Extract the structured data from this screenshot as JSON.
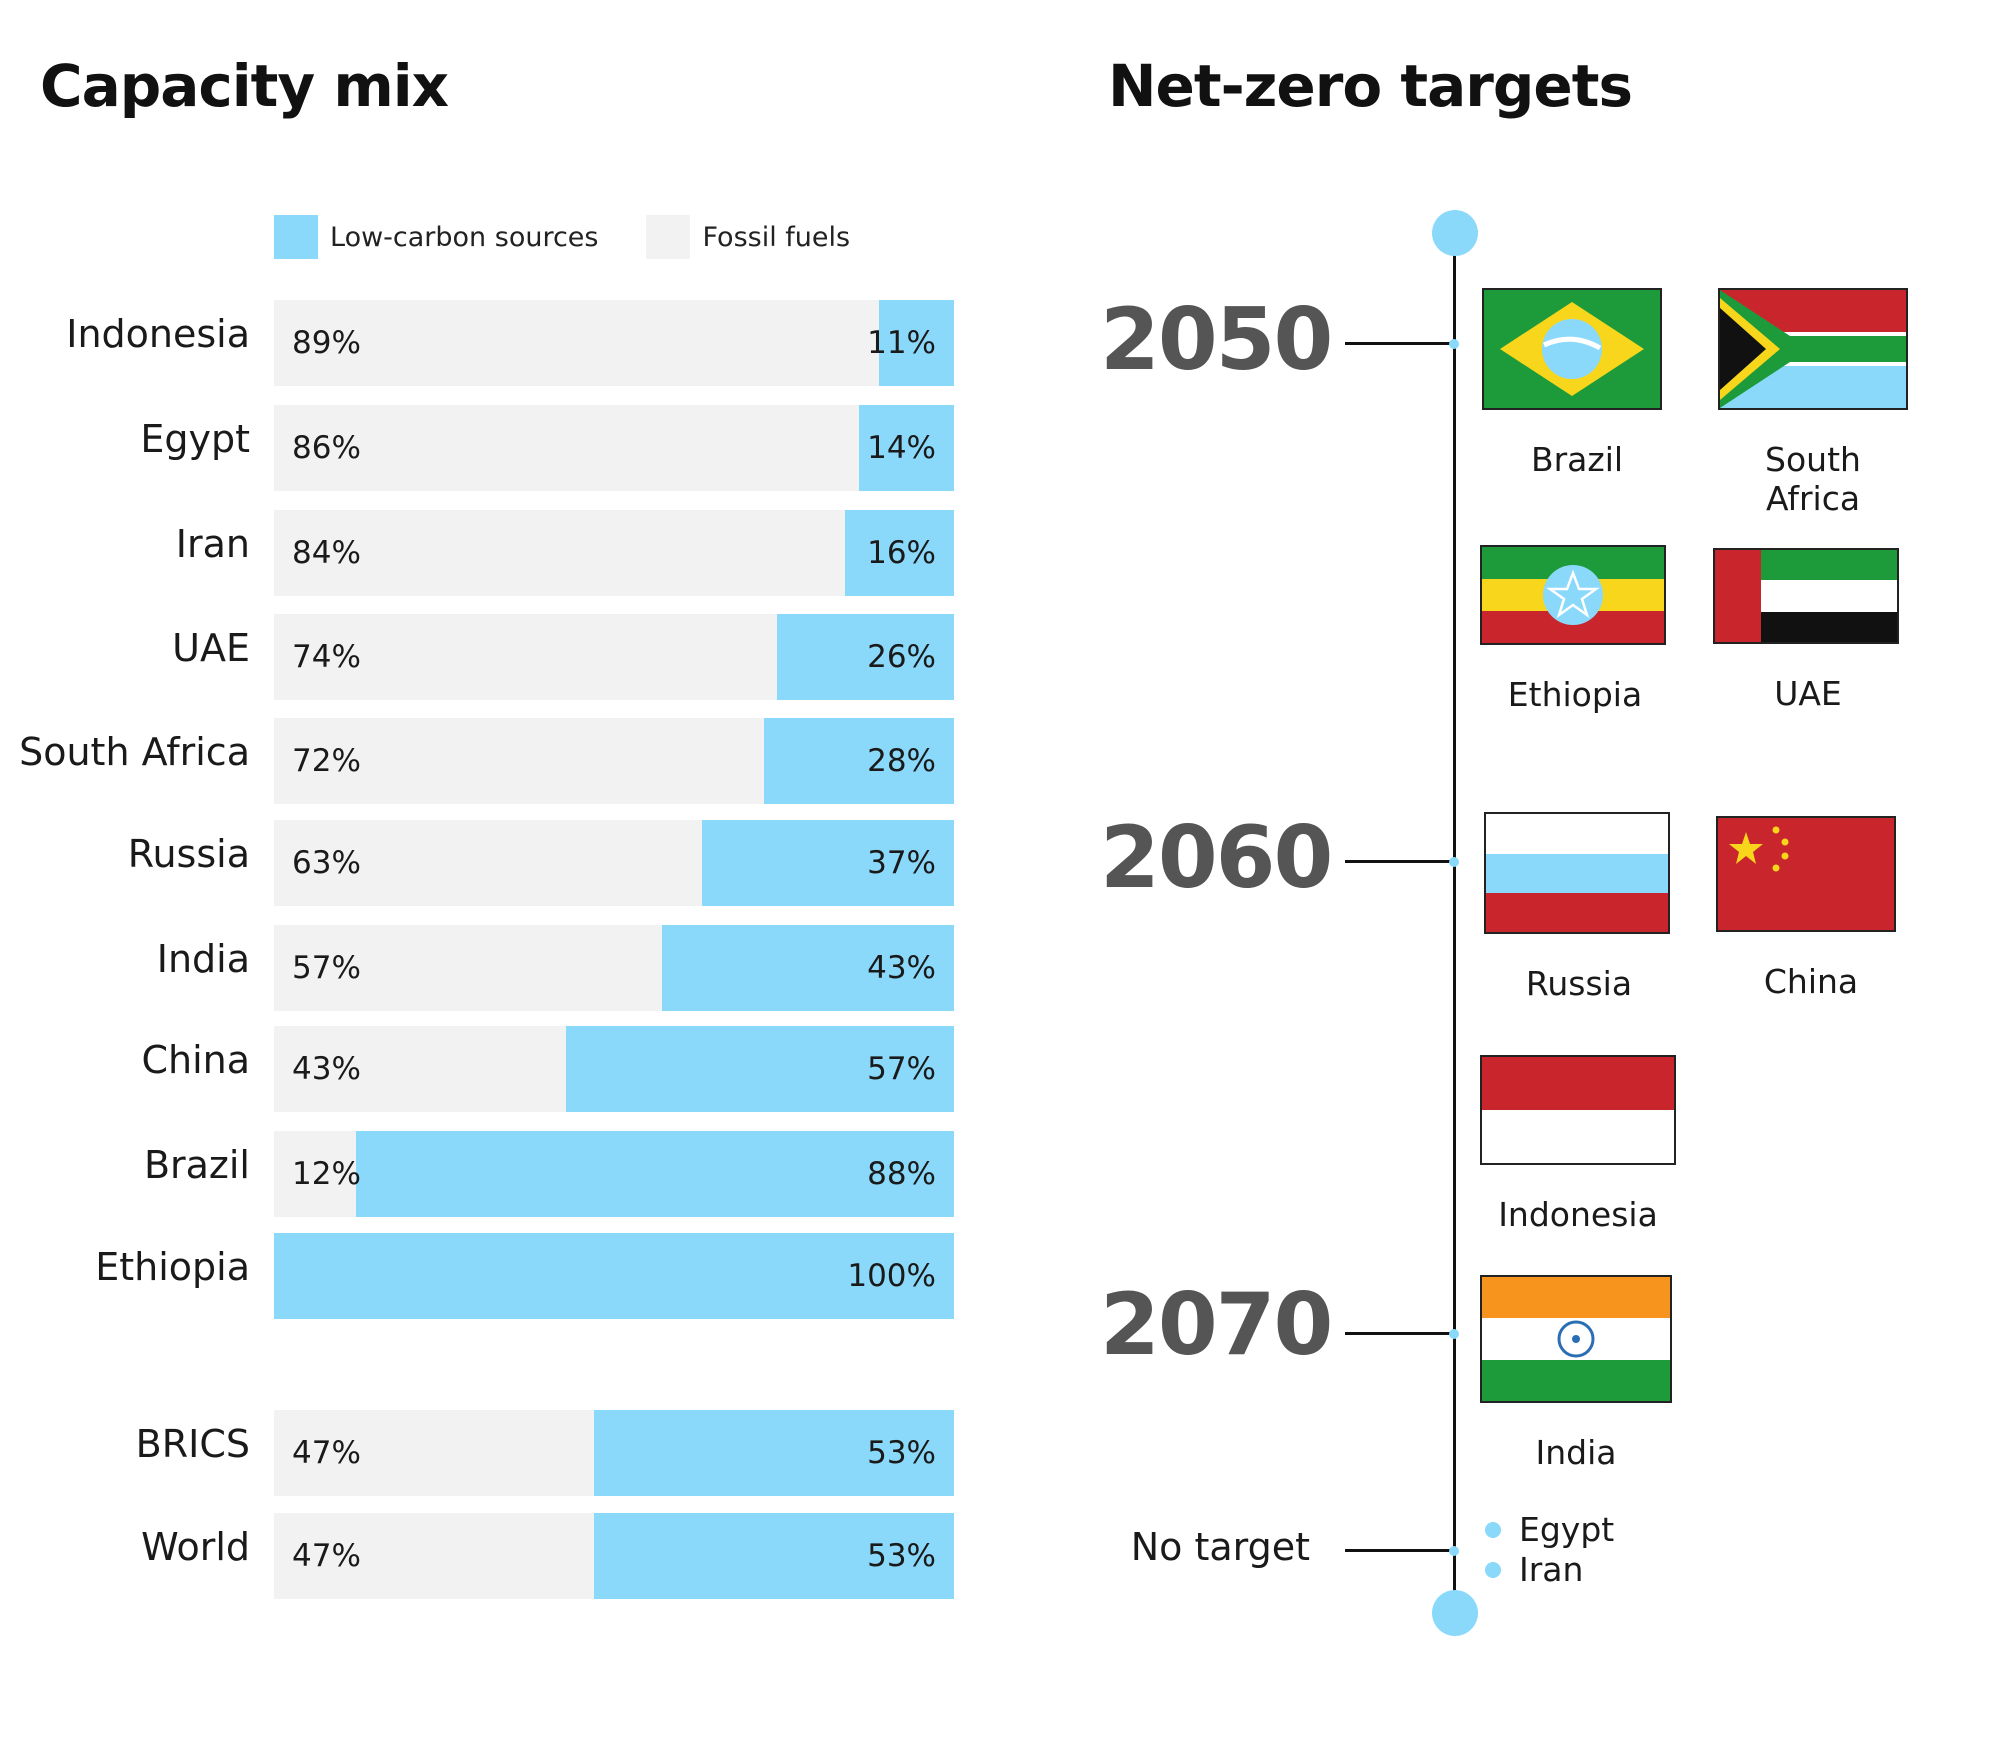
{
  "left_title": "Capacity mix",
  "right_title": "Net-zero targets",
  "colors": {
    "low_carbon": "#8ad9fb",
    "fossil": "#f2f2f2",
    "accent": "#8ad9fb"
  },
  "chart_data": [
    {
      "type": "bar",
      "orientation": "horizontal",
      "stacked": true,
      "title": "Capacity mix",
      "legend": [
        "Low-carbon sources",
        "Fossil fuels"
      ],
      "legend_placement": "top",
      "categories": [
        "Indonesia",
        "Egypt",
        "Iran",
        "UAE",
        "South Africa",
        "Russia",
        "India",
        "China",
        "Brazil",
        "Ethiopia",
        "BRICS",
        "World"
      ],
      "series": [
        {
          "name": "Fossil fuels",
          "values": [
            89,
            86,
            84,
            74,
            72,
            63,
            57,
            43,
            12,
            0,
            47,
            47
          ],
          "labels": [
            "89%",
            "86%",
            "84%",
            "74%",
            "72%",
            "63%",
            "57%",
            "43%",
            "12%",
            "",
            "47%",
            "47%"
          ]
        },
        {
          "name": "Low-carbon sources",
          "values": [
            11,
            14,
            16,
            26,
            28,
            37,
            43,
            57,
            88,
            100,
            53,
            53
          ],
          "labels": [
            "11%",
            "14%",
            "16%",
            "26%",
            "28%",
            "37%",
            "43%",
            "57%",
            "88%",
            "100%",
            "53%",
            "53%"
          ]
        }
      ],
      "xlim": [
        0,
        100
      ]
    },
    {
      "type": "timeline",
      "title": "Net-zero targets",
      "groups": [
        {
          "year": "2050",
          "countries": [
            "Brazil",
            "South Africa",
            "Ethiopia",
            "UAE"
          ]
        },
        {
          "year": "2060",
          "countries": [
            "Russia",
            "China",
            "Indonesia"
          ]
        },
        {
          "year": "2070",
          "countries": [
            "India"
          ]
        },
        {
          "year": "No target",
          "countries": [
            "Egypt",
            "Iran"
          ]
        }
      ]
    }
  ]
}
